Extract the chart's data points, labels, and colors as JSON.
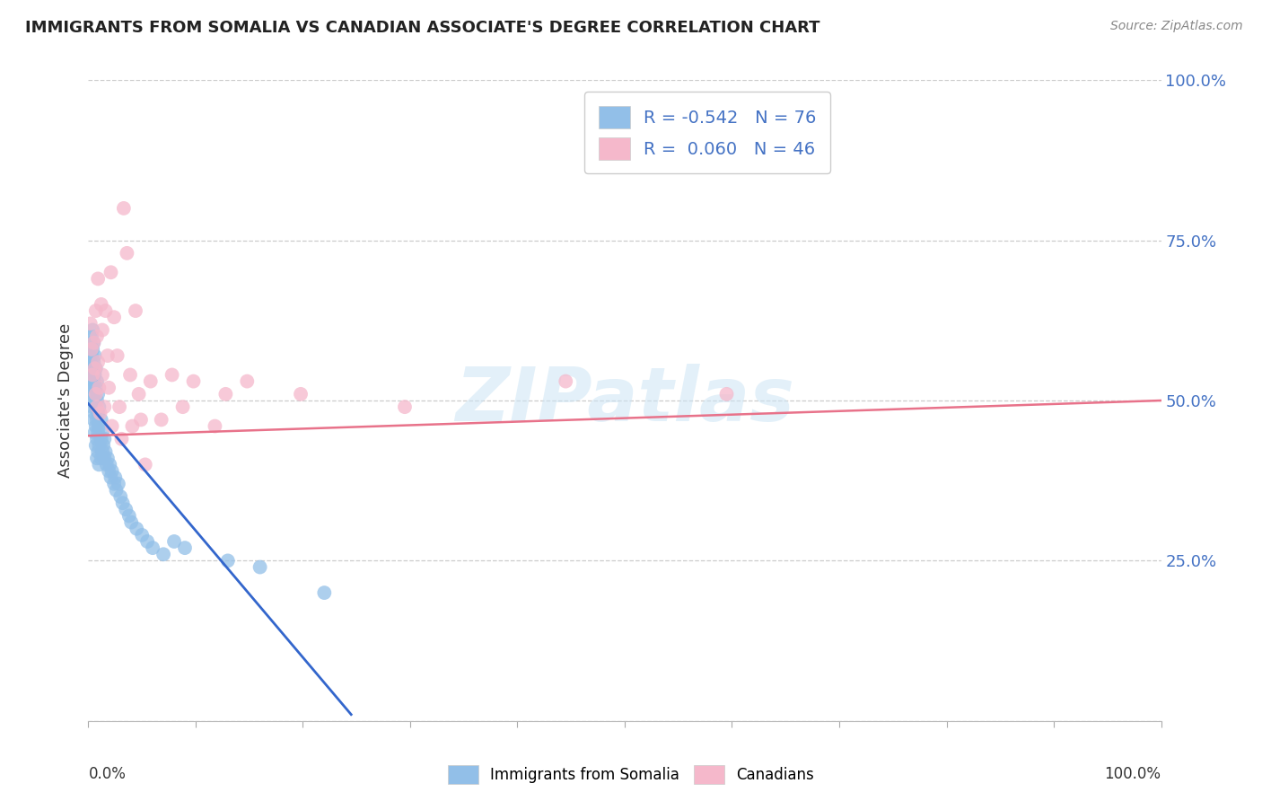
{
  "title": "IMMIGRANTS FROM SOMALIA VS CANADIAN ASSOCIATE'S DEGREE CORRELATION CHART",
  "source": "Source: ZipAtlas.com",
  "ylabel": "Associate's Degree",
  "blue_color": "#92bfe8",
  "pink_color": "#f5b8cb",
  "line_blue": "#3366cc",
  "line_pink": "#e8728a",
  "watermark_text": "ZIPatlas",
  "legend_label1": "Immigrants from Somalia",
  "legend_label2": "Canadians",
  "background_color": "#ffffff",
  "tick_color": "#4472c4",
  "ytick_labels_right": [
    "100.0%",
    "75.0%",
    "50.0%",
    "25.0%",
    ""
  ],
  "ytick_vals": [
    1.0,
    0.75,
    0.5,
    0.25,
    0.0
  ],
  "xlim": [
    0.0,
    1.0
  ],
  "ylim": [
    0.0,
    1.0
  ],
  "blue_line_x": [
    0.0,
    0.245
  ],
  "blue_line_y": [
    0.495,
    0.01
  ],
  "pink_line_x": [
    0.0,
    1.0
  ],
  "pink_line_y": [
    0.445,
    0.5
  ],
  "blue_scatter": [
    [
      0.001,
      0.57
    ],
    [
      0.001,
      0.55
    ],
    [
      0.002,
      0.59
    ],
    [
      0.002,
      0.56
    ],
    [
      0.002,
      0.53
    ],
    [
      0.003,
      0.6
    ],
    [
      0.003,
      0.57
    ],
    [
      0.003,
      0.54
    ],
    [
      0.003,
      0.51
    ],
    [
      0.004,
      0.61
    ],
    [
      0.004,
      0.58
    ],
    [
      0.004,
      0.55
    ],
    [
      0.004,
      0.52
    ],
    [
      0.004,
      0.49
    ],
    [
      0.005,
      0.59
    ],
    [
      0.005,
      0.56
    ],
    [
      0.005,
      0.53
    ],
    [
      0.005,
      0.5
    ],
    [
      0.005,
      0.47
    ],
    [
      0.006,
      0.57
    ],
    [
      0.006,
      0.54
    ],
    [
      0.006,
      0.51
    ],
    [
      0.006,
      0.48
    ],
    [
      0.006,
      0.45
    ],
    [
      0.007,
      0.55
    ],
    [
      0.007,
      0.52
    ],
    [
      0.007,
      0.49
    ],
    [
      0.007,
      0.46
    ],
    [
      0.007,
      0.43
    ],
    [
      0.008,
      0.53
    ],
    [
      0.008,
      0.5
    ],
    [
      0.008,
      0.47
    ],
    [
      0.008,
      0.44
    ],
    [
      0.008,
      0.41
    ],
    [
      0.009,
      0.51
    ],
    [
      0.009,
      0.48
    ],
    [
      0.009,
      0.45
    ],
    [
      0.009,
      0.42
    ],
    [
      0.01,
      0.49
    ],
    [
      0.01,
      0.46
    ],
    [
      0.01,
      0.43
    ],
    [
      0.01,
      0.4
    ],
    [
      0.012,
      0.47
    ],
    [
      0.012,
      0.44
    ],
    [
      0.012,
      0.41
    ],
    [
      0.013,
      0.45
    ],
    [
      0.013,
      0.42
    ],
    [
      0.014,
      0.43
    ],
    [
      0.015,
      0.44
    ],
    [
      0.015,
      0.41
    ],
    [
      0.016,
      0.42
    ],
    [
      0.017,
      0.4
    ],
    [
      0.018,
      0.41
    ],
    [
      0.019,
      0.39
    ],
    [
      0.02,
      0.4
    ],
    [
      0.021,
      0.38
    ],
    [
      0.022,
      0.39
    ],
    [
      0.024,
      0.37
    ],
    [
      0.025,
      0.38
    ],
    [
      0.026,
      0.36
    ],
    [
      0.028,
      0.37
    ],
    [
      0.03,
      0.35
    ],
    [
      0.032,
      0.34
    ],
    [
      0.035,
      0.33
    ],
    [
      0.038,
      0.32
    ],
    [
      0.04,
      0.31
    ],
    [
      0.045,
      0.3
    ],
    [
      0.05,
      0.29
    ],
    [
      0.055,
      0.28
    ],
    [
      0.06,
      0.27
    ],
    [
      0.07,
      0.26
    ],
    [
      0.08,
      0.28
    ],
    [
      0.09,
      0.27
    ],
    [
      0.13,
      0.25
    ],
    [
      0.16,
      0.24
    ],
    [
      0.22,
      0.2
    ]
  ],
  "pink_scatter": [
    [
      0.002,
      0.62
    ],
    [
      0.003,
      0.58
    ],
    [
      0.004,
      0.54
    ],
    [
      0.005,
      0.59
    ],
    [
      0.006,
      0.55
    ],
    [
      0.007,
      0.51
    ],
    [
      0.007,
      0.64
    ],
    [
      0.008,
      0.49
    ],
    [
      0.008,
      0.6
    ],
    [
      0.009,
      0.69
    ],
    [
      0.009,
      0.56
    ],
    [
      0.01,
      0.52
    ],
    [
      0.011,
      0.48
    ],
    [
      0.012,
      0.65
    ],
    [
      0.013,
      0.61
    ],
    [
      0.013,
      0.54
    ],
    [
      0.015,
      0.49
    ],
    [
      0.016,
      0.64
    ],
    [
      0.018,
      0.57
    ],
    [
      0.019,
      0.52
    ],
    [
      0.021,
      0.7
    ],
    [
      0.022,
      0.46
    ],
    [
      0.024,
      0.63
    ],
    [
      0.027,
      0.57
    ],
    [
      0.029,
      0.49
    ],
    [
      0.031,
      0.44
    ],
    [
      0.033,
      0.8
    ],
    [
      0.036,
      0.73
    ],
    [
      0.039,
      0.54
    ],
    [
      0.041,
      0.46
    ],
    [
      0.044,
      0.64
    ],
    [
      0.047,
      0.51
    ],
    [
      0.049,
      0.47
    ],
    [
      0.053,
      0.4
    ],
    [
      0.058,
      0.53
    ],
    [
      0.068,
      0.47
    ],
    [
      0.078,
      0.54
    ],
    [
      0.088,
      0.49
    ],
    [
      0.098,
      0.53
    ],
    [
      0.118,
      0.46
    ],
    [
      0.128,
      0.51
    ],
    [
      0.148,
      0.53
    ],
    [
      0.198,
      0.51
    ],
    [
      0.295,
      0.49
    ],
    [
      0.445,
      0.53
    ],
    [
      0.595,
      0.51
    ]
  ]
}
